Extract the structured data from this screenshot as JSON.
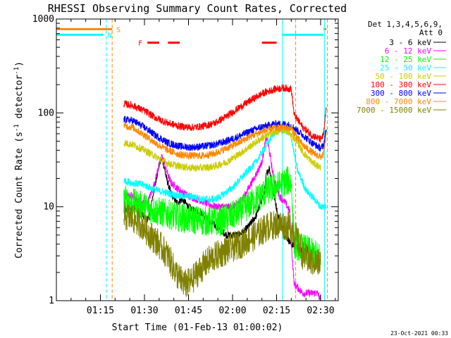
{
  "chart_data": {
    "type": "line",
    "title": "RHESSI Observing Summary Count Rates, Corrected",
    "xlabel": "Start Time (01-Feb-13 01:00:02)",
    "ylabel_main": "Corrected Count Rate (s",
    "ylabel_sup1": "-1",
    "ylabel_mid": " detector",
    "ylabel_sup2": "-1",
    "ylabel_end": ")",
    "yscale": "log",
    "ylim": [
      1,
      1000
    ],
    "xlim_minutes": [
      0,
      96
    ],
    "x_ticks": [
      {
        "label": "01:15",
        "min": 15
      },
      {
        "label": "01:30",
        "min": 30
      },
      {
        "label": "01:45",
        "min": 45
      },
      {
        "label": "02:00",
        "min": 60
      },
      {
        "label": "02:15",
        "min": 75
      },
      {
        "label": "02:30",
        "min": 90
      }
    ],
    "y_ticks": [
      {
        "label": "1",
        "value": 1
      },
      {
        "label": "10",
        "value": 10
      },
      {
        "label": "100",
        "value": 100
      },
      {
        "label": "1000",
        "value": 1000
      }
    ],
    "legend_title": [
      "Det 1,3,4,5,6,9,",
      "Att 0"
    ],
    "legend_position": "right",
    "series": [
      {
        "name": "3 - 6 keV",
        "color": "#000000",
        "points": [
          [
            23,
            9
          ],
          [
            25,
            9.5
          ],
          [
            28,
            10
          ],
          [
            30,
            7.5
          ],
          [
            31.5,
            7.5
          ],
          [
            33,
            14
          ],
          [
            35,
            28
          ],
          [
            36,
            34
          ],
          [
            37.5,
            20
          ],
          [
            39,
            14
          ],
          [
            41,
            11
          ],
          [
            43,
            12
          ],
          [
            45,
            10
          ],
          [
            47,
            9
          ],
          [
            49,
            9
          ],
          [
            52,
            7
          ],
          [
            55,
            6
          ],
          [
            58,
            5
          ],
          [
            60,
            5
          ],
          [
            62,
            5
          ],
          [
            64,
            5.5
          ],
          [
            66,
            6.5
          ],
          [
            68,
            8
          ],
          [
            70,
            12
          ],
          [
            71,
            15
          ],
          [
            71.5,
            22
          ],
          [
            72.5,
            26
          ],
          [
            74,
            14
          ],
          [
            75.5,
            8
          ],
          [
            78,
            5
          ],
          [
            80,
            4
          ],
          [
            83,
            3.5
          ],
          [
            86,
            3.5
          ]
        ]
      },
      {
        "name": "6 - 12 keV",
        "color": "#ff00ff",
        "points": [
          [
            23,
            13
          ],
          [
            26,
            13
          ],
          [
            29,
            11
          ],
          [
            31,
            11
          ],
          [
            33,
            16
          ],
          [
            35,
            28
          ],
          [
            36,
            35
          ],
          [
            37.5,
            24
          ],
          [
            39,
            18
          ],
          [
            42,
            15
          ],
          [
            45,
            13
          ],
          [
            48,
            12
          ],
          [
            51,
            11
          ],
          [
            54,
            10
          ],
          [
            57,
            10
          ],
          [
            60,
            10
          ],
          [
            62,
            11
          ],
          [
            64,
            13
          ],
          [
            66,
            17
          ],
          [
            68,
            22
          ],
          [
            70,
            30
          ],
          [
            71.5,
            55
          ],
          [
            72.5,
            40
          ],
          [
            74,
            20
          ],
          [
            76,
            13
          ],
          [
            78,
            11
          ],
          [
            79.5,
            9
          ],
          [
            80,
            4
          ],
          [
            81,
            1.5
          ],
          [
            84,
            1.2
          ],
          [
            89,
            1.2
          ],
          [
            90,
            1.0
          ]
        ]
      },
      {
        "name": "12 - 25 keV",
        "color": "#00ff00",
        "points": [
          [
            23,
            12
          ],
          [
            26,
            11
          ],
          [
            30,
            10
          ],
          [
            34,
            9
          ],
          [
            37,
            8.5
          ],
          [
            40,
            8
          ],
          [
            44,
            7.5
          ],
          [
            48,
            7.2
          ],
          [
            52,
            7
          ],
          [
            56,
            7
          ],
          [
            60,
            8
          ],
          [
            64,
            9.5
          ],
          [
            68,
            12
          ],
          [
            72,
            15
          ],
          [
            76,
            17
          ],
          [
            79,
            19
          ],
          [
            80,
            18
          ],
          [
            81,
            4
          ],
          [
            85,
            3.5
          ],
          [
            89,
            3
          ],
          [
            90,
            3
          ]
        ]
      },
      {
        "name": "25 - 50 keV",
        "color": "#00ffff",
        "points": [
          [
            23,
            19
          ],
          [
            26,
            18
          ],
          [
            30,
            17
          ],
          [
            34,
            15
          ],
          [
            38,
            14
          ],
          [
            42,
            13
          ],
          [
            46,
            13
          ],
          [
            50,
            12
          ],
          [
            54,
            12
          ],
          [
            56,
            13
          ],
          [
            60,
            16
          ],
          [
            64,
            22
          ],
          [
            68,
            30
          ],
          [
            72,
            48
          ],
          [
            74,
            60
          ],
          [
            76,
            68
          ],
          [
            78,
            65
          ],
          [
            80,
            55
          ],
          [
            82,
            25
          ],
          [
            85,
            15
          ],
          [
            88,
            12
          ],
          [
            90,
            10
          ],
          [
            92,
            10
          ]
        ]
      },
      {
        "name": "50 - 100 keV",
        "color": "#cccc00",
        "points": [
          [
            23,
            48
          ],
          [
            26,
            46
          ],
          [
            30,
            40
          ],
          [
            34,
            34
          ],
          [
            38,
            29
          ],
          [
            42,
            27
          ],
          [
            46,
            26
          ],
          [
            50,
            26
          ],
          [
            54,
            27
          ],
          [
            58,
            30
          ],
          [
            62,
            36
          ],
          [
            66,
            44
          ],
          [
            70,
            54
          ],
          [
            74,
            62
          ],
          [
            78,
            66
          ],
          [
            80,
            58
          ],
          [
            82,
            50
          ],
          [
            84,
            38
          ],
          [
            87,
            30
          ],
          [
            90,
            26
          ]
        ]
      },
      {
        "name": "100 - 300 keV",
        "color": "#ff0000",
        "points": [
          [
            23,
            125
          ],
          [
            26,
            120
          ],
          [
            30,
            105
          ],
          [
            34,
            88
          ],
          [
            38,
            78
          ],
          [
            42,
            72
          ],
          [
            46,
            70
          ],
          [
            50,
            72
          ],
          [
            54,
            78
          ],
          [
            58,
            92
          ],
          [
            62,
            112
          ],
          [
            66,
            135
          ],
          [
            70,
            160
          ],
          [
            74,
            178
          ],
          [
            77,
            185
          ],
          [
            80,
            180
          ],
          [
            81,
            95
          ],
          [
            84,
            70
          ],
          [
            87,
            58
          ],
          [
            90,
            52
          ],
          [
            91,
            58
          ],
          [
            92,
            120
          ]
        ]
      },
      {
        "name": "300 - 800 keV",
        "color": "#0000ff",
        "points": [
          [
            23,
            85
          ],
          [
            26,
            83
          ],
          [
            30,
            70
          ],
          [
            34,
            57
          ],
          [
            38,
            48
          ],
          [
            42,
            44
          ],
          [
            46,
            43
          ],
          [
            50,
            44
          ],
          [
            54,
            46
          ],
          [
            58,
            50
          ],
          [
            62,
            56
          ],
          [
            66,
            64
          ],
          [
            70,
            71
          ],
          [
            74,
            76
          ],
          [
            78,
            76
          ],
          [
            80,
            73
          ],
          [
            82,
            65
          ],
          [
            84,
            58
          ],
          [
            87,
            48
          ],
          [
            90,
            42
          ],
          [
            91,
            45
          ],
          [
            92,
            70
          ]
        ]
      },
      {
        "name": "800 - 7000 keV",
        "color": "#ff8800",
        "points": [
          [
            23,
            73
          ],
          [
            26,
            70
          ],
          [
            30,
            58
          ],
          [
            34,
            47
          ],
          [
            38,
            40
          ],
          [
            42,
            36
          ],
          [
            46,
            35
          ],
          [
            50,
            35
          ],
          [
            54,
            37
          ],
          [
            58,
            42
          ],
          [
            62,
            48
          ],
          [
            66,
            56
          ],
          [
            70,
            63
          ],
          [
            74,
            68
          ],
          [
            78,
            70
          ],
          [
            80,
            68
          ],
          [
            82,
            55
          ],
          [
            84,
            45
          ],
          [
            87,
            38
          ],
          [
            90,
            34
          ],
          [
            91,
            36
          ],
          [
            92,
            60
          ]
        ]
      },
      {
        "name": "7000 - 15000 keV",
        "color": "#808000",
        "points": [
          [
            23,
            8
          ],
          [
            26,
            7.5
          ],
          [
            29,
            6.5
          ],
          [
            32,
            5
          ],
          [
            35,
            4
          ],
          [
            38,
            3
          ],
          [
            40,
            2.2
          ],
          [
            42,
            1.7
          ],
          [
            44,
            1.5
          ],
          [
            46,
            1.6
          ],
          [
            48,
            2
          ],
          [
            50,
            2.3
          ],
          [
            52,
            2.7
          ],
          [
            56,
            3.2
          ],
          [
            60,
            3.7
          ],
          [
            64,
            4.2
          ],
          [
            68,
            5
          ],
          [
            72,
            6.2
          ],
          [
            76,
            6.5
          ],
          [
            79,
            6.2
          ],
          [
            80,
            6
          ],
          [
            82,
            4.5
          ],
          [
            84,
            3
          ],
          [
            87,
            2.6
          ],
          [
            90,
            2.5
          ]
        ]
      }
    ],
    "flag_bars": [
      {
        "label": "S",
        "color": "#ff8800",
        "value": 780,
        "segments": [
          [
            0,
            19
          ],
          [
            91,
            92
          ]
        ]
      },
      {
        "label": "N",
        "color": "#00ffff",
        "value": 680,
        "segments": [
          [
            0,
            16
          ],
          [
            77,
            91
          ]
        ]
      }
    ],
    "flare_label": "F",
    "flare_color": "#ff0000",
    "flare_value": 560,
    "flare_segments": [
      [
        31,
        35
      ],
      [
        38,
        42
      ],
      [
        70,
        75
      ]
    ],
    "vlines": [
      {
        "min": 17.0,
        "color": "#00ffff",
        "dashed": true
      },
      {
        "min": 19.0,
        "color": "#ff8800",
        "dashed": true
      },
      {
        "min": 77.0,
        "color": "#00ffff",
        "dashed": false
      },
      {
        "min": 81.5,
        "color": "#ff8800",
        "dashed": true
      },
      {
        "min": 91.3,
        "color": "#00ffff",
        "dashed": false
      },
      {
        "min": 92.3,
        "color": "#ff8800",
        "dashed": true
      }
    ],
    "timestamp": "23-Oct-2021 00:33"
  }
}
